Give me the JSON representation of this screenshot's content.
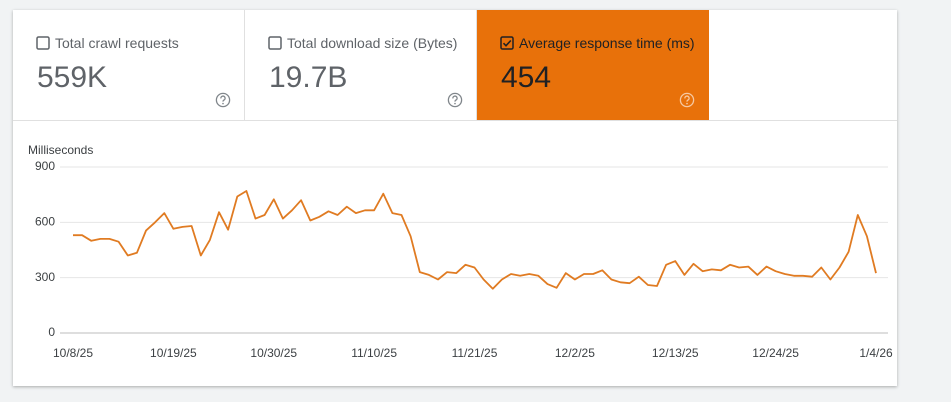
{
  "metrics": [
    {
      "label": "Total crawl requests",
      "value": "559K",
      "checked": false
    },
    {
      "label": "Total download size (Bytes)",
      "value": "19.7B",
      "checked": false
    },
    {
      "label": "Average response time (ms)",
      "value": "454",
      "checked": true,
      "color": "#e8710a"
    }
  ],
  "chart_data": {
    "type": "line",
    "y_axis_label": "Milliseconds",
    "x": [
      "10/8/25",
      "10/9/25",
      "10/10/25",
      "10/11/25",
      "10/12/25",
      "10/13/25",
      "10/14/25",
      "10/15/25",
      "10/16/25",
      "10/17/25",
      "10/18/25",
      "10/19/25",
      "10/20/25",
      "10/21/25",
      "10/22/25",
      "10/23/25",
      "10/24/25",
      "10/25/25",
      "10/26/25",
      "10/27/25",
      "10/28/25",
      "10/29/25",
      "10/30/25",
      "10/31/25",
      "11/1/25",
      "11/2/25",
      "11/3/25",
      "11/4/25",
      "11/5/25",
      "11/6/25",
      "11/7/25",
      "11/8/25",
      "11/9/25",
      "11/10/25",
      "11/11/25",
      "11/12/25",
      "11/13/25",
      "11/14/25",
      "11/15/25",
      "11/16/25",
      "11/17/25",
      "11/18/25",
      "11/19/25",
      "11/20/25",
      "11/21/25",
      "11/22/25",
      "11/23/25",
      "11/24/25",
      "11/25/25",
      "11/26/25",
      "11/27/25",
      "11/28/25",
      "11/29/25",
      "11/30/25",
      "12/1/25",
      "12/2/25",
      "12/3/25",
      "12/4/25",
      "12/5/25",
      "12/6/25",
      "12/7/25",
      "12/8/25",
      "12/9/25",
      "12/10/25",
      "12/11/25",
      "12/12/25",
      "12/13/25",
      "12/14/25",
      "12/15/25",
      "12/16/25",
      "12/17/25",
      "12/18/25",
      "12/19/25",
      "12/20/25",
      "12/21/25",
      "12/22/25",
      "12/23/25",
      "12/24/25",
      "12/25/25",
      "12/26/25",
      "12/27/25",
      "12/28/25",
      "12/29/25",
      "12/30/25",
      "12/31/25",
      "1/1/26",
      "1/2/26",
      "1/3/26",
      "1/4/26"
    ],
    "series": [
      {
        "name": "Average response time (ms)",
        "color": "#e07b22",
        "values": [
          530,
          530,
          500,
          510,
          510,
          495,
          420,
          435,
          555,
          600,
          650,
          565,
          575,
          580,
          420,
          505,
          655,
          560,
          740,
          770,
          620,
          640,
          725,
          620,
          665,
          720,
          610,
          630,
          660,
          640,
          685,
          650,
          665,
          665,
          755,
          650,
          640,
          525,
          330,
          315,
          290,
          330,
          325,
          370,
          355,
          290,
          240,
          290,
          320,
          310,
          320,
          310,
          265,
          245,
          325,
          290,
          320,
          320,
          340,
          290,
          275,
          270,
          305,
          260,
          255,
          370,
          390,
          315,
          375,
          335,
          345,
          340,
          370,
          355,
          360,
          315,
          360,
          335,
          320,
          310,
          310,
          305,
          355,
          290,
          355,
          440,
          640,
          525,
          325
        ]
      }
    ],
    "xlim": [
      "10/8/25",
      "1/4/26"
    ],
    "xticks": [
      "10/8/25",
      "10/19/25",
      "10/30/25",
      "11/10/25",
      "11/21/25",
      "12/2/25",
      "12/13/25",
      "12/24/25",
      "1/4/26"
    ],
    "ylim": [
      0,
      900
    ],
    "yticks": [
      0,
      300,
      600,
      900
    ],
    "grid": true
  }
}
